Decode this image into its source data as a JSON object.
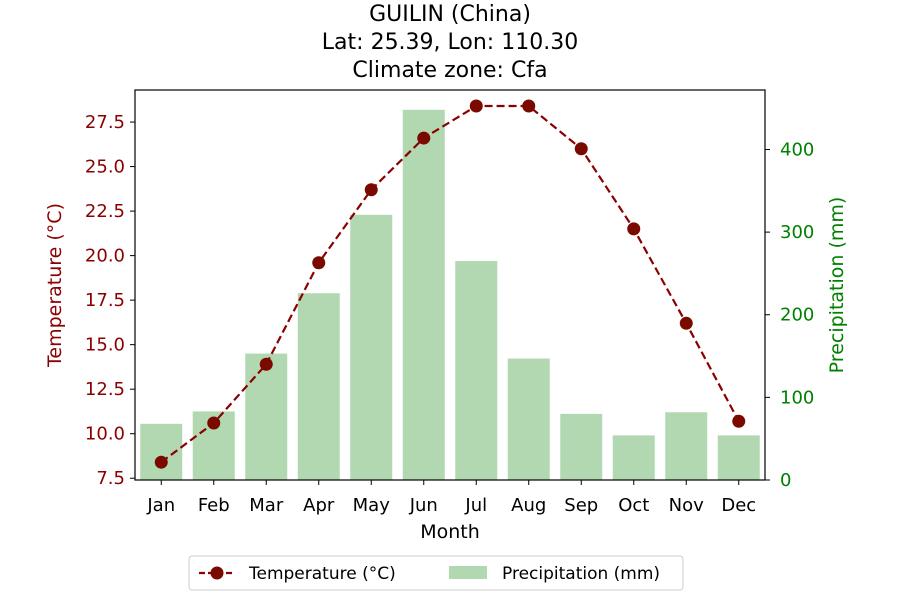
{
  "chart_data": {
    "type": "bar+line",
    "title_lines": [
      "GUILIN (China)",
      "Lat: 25.39, Lon: 110.30",
      "Climate zone: Cfa"
    ],
    "xlabel": "Month",
    "ylabel_left": "Temperature (°C)",
    "ylabel_right": "Precipitation (mm)",
    "categories": [
      "Jan",
      "Feb",
      "Mar",
      "Apr",
      "May",
      "Jun",
      "Jul",
      "Aug",
      "Sep",
      "Oct",
      "Nov",
      "Dec"
    ],
    "temperature": [
      8.4,
      10.6,
      13.9,
      19.6,
      23.7,
      26.6,
      28.4,
      28.4,
      26.0,
      21.5,
      16.2,
      10.7
    ],
    "precipitation": [
      68,
      83,
      153,
      226,
      321,
      448,
      265,
      147,
      80,
      54,
      82,
      54
    ],
    "left_axis": {
      "min": 7.4,
      "max": 29.3,
      "ticks": [
        7.5,
        10.0,
        12.5,
        15.0,
        17.5,
        20.0,
        22.5,
        25.0,
        27.5
      ],
      "tick_labels": [
        "7.5",
        "10.0",
        "12.5",
        "15.0",
        "17.5",
        "20.0",
        "22.5",
        "25.0",
        "27.5"
      ]
    },
    "right_axis": {
      "min": 0,
      "max": 472,
      "ticks": [
        0,
        100,
        200,
        300,
        400
      ],
      "tick_labels": [
        "0",
        "100",
        "200",
        "300",
        "400"
      ]
    },
    "legend": {
      "position": "bottom-center",
      "items": [
        "Temperature (°C)",
        "Precipitation (mm)"
      ]
    },
    "colors": {
      "temperature": "#8b0000",
      "temperature_marker": "#7a0a00",
      "precipitation": "#b2d8b2",
      "right_axis": "#008000",
      "left_axis": "#8b0000"
    },
    "grid": false
  }
}
